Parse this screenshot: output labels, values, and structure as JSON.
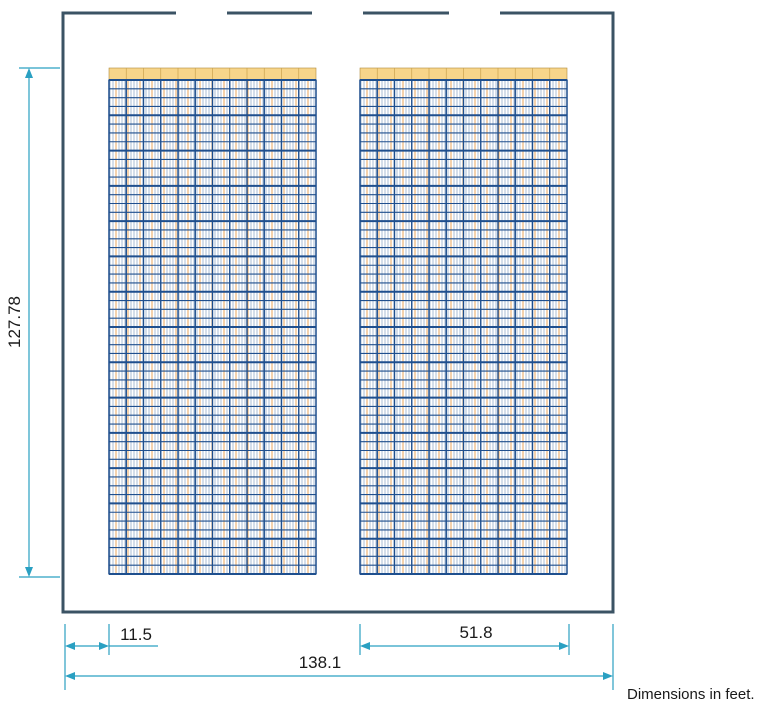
{
  "dimensions": {
    "height_label": "127.78",
    "offset_label": "11.5",
    "block_width_label": "51.8",
    "total_width_label": "138.1"
  },
  "note": "Dimensions in feet.",
  "colors": {
    "wall": "#3b5364",
    "rack_upright": "#1f4f8e",
    "beam": "#e69a48",
    "header": "#f7d58a",
    "dimension": "#2aa0c2"
  }
}
